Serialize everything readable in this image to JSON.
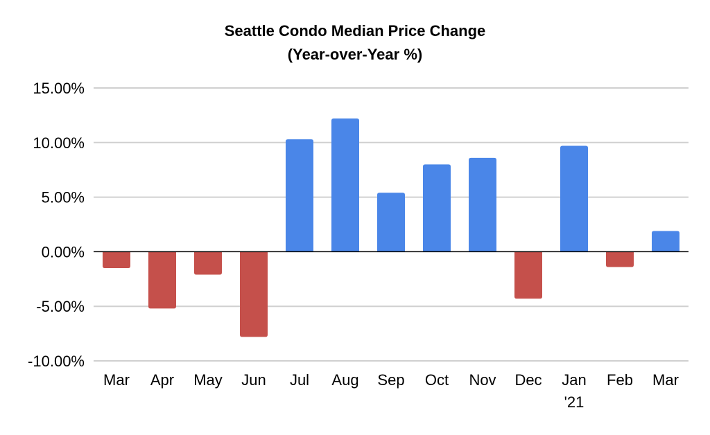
{
  "chart_data": {
    "type": "bar",
    "title": "Seattle Condo Median Price Change",
    "subtitle": "(Year-over-Year %)",
    "categories": [
      "Mar",
      "Apr",
      "May",
      "Jun",
      "Jul",
      "Aug",
      "Sep",
      "Oct",
      "Nov",
      "Dec",
      "Jan",
      "Feb",
      "Mar"
    ],
    "category_sublabels": [
      "",
      "",
      "",
      "",
      "",
      "",
      "",
      "",
      "",
      "",
      "'21",
      "",
      ""
    ],
    "values": [
      -1.5,
      -5.2,
      -2.1,
      -7.8,
      10.3,
      12.2,
      5.4,
      8.0,
      8.6,
      -4.3,
      9.7,
      -1.4,
      1.9
    ],
    "ylim": [
      -10,
      15
    ],
    "yticks": [
      15,
      10,
      5,
      0,
      -5,
      -10
    ],
    "ytick_labels": [
      "15.00%",
      "10.00%",
      "5.00%",
      "0.00%",
      "-5.00%",
      "-10.00%"
    ],
    "grid": true,
    "colors": {
      "positive": "#4a86e8",
      "negative": "#c5504b",
      "grid": "#d0d0d0",
      "zero_line": "#000000"
    }
  }
}
